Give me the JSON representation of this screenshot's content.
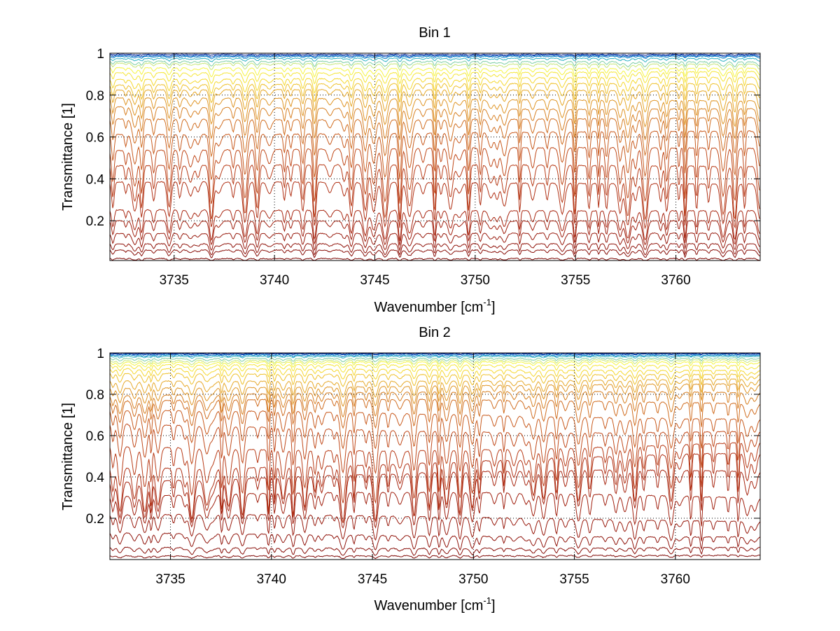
{
  "chart_data": [
    {
      "type": "line",
      "title": "Bin 1",
      "xlabel_base": "Wavenumber [cm",
      "xlabel_sup": "-1",
      "xlabel_close": "]",
      "ylabel": "Transmittance [1]",
      "xlim": [
        3731.8,
        3764.2
      ],
      "ylim": [
        0.01,
        1.0
      ],
      "xticks": [
        3735,
        3740,
        3745,
        3750,
        3755,
        3760
      ],
      "xtick_labels": [
        "3735",
        "3740",
        "3745",
        "3750",
        "3755",
        "3760"
      ],
      "yticks": [
        0.2,
        0.4,
        0.6,
        0.8,
        1
      ],
      "ytick_labels": [
        "0.2",
        "0.4",
        "0.6",
        "0.8",
        "1"
      ],
      "grid": true,
      "series_count": 24,
      "series_baselines": [
        0.995,
        0.99,
        0.985,
        0.975,
        0.96,
        0.95,
        0.93,
        0.91,
        0.88,
        0.85,
        0.82,
        0.78,
        0.74,
        0.69,
        0.62,
        0.54,
        0.46,
        0.38,
        0.25,
        0.2,
        0.14,
        0.09,
        0.06,
        0.02
      ],
      "series_colors": [
        "#00208f",
        "#0050c0",
        "#0a85c8",
        "#2fb2c4",
        "#7fcfa6",
        "#c7e67a",
        "#f5f542",
        "#f5e63a",
        "#f5d82f",
        "#eec12c",
        "#e6a829",
        "#df9526",
        "#d78023",
        "#d06d20",
        "#c85a1d",
        "#c0491a",
        "#b83b17",
        "#b03014",
        "#a82712",
        "#a0200f",
        "#981a0d",
        "#90140b",
        "#880f09",
        "#800a07"
      ]
    },
    {
      "type": "line",
      "title": "Bin 2",
      "xlabel_base": "Wavenumber [cm",
      "xlabel_sup": "-1",
      "xlabel_close": "]",
      "ylabel": "Transmittance [1]",
      "xlim": [
        3732.0,
        3764.2
      ],
      "ylim": [
        0.0,
        1.0
      ],
      "xticks": [
        3735,
        3740,
        3745,
        3750,
        3755,
        3760
      ],
      "xtick_labels": [
        "3735",
        "3740",
        "3745",
        "3750",
        "3755",
        "3760"
      ],
      "yticks": [
        0.2,
        0.4,
        0.6,
        0.8,
        1
      ],
      "ytick_labels": [
        "0.2",
        "0.4",
        "0.6",
        "0.8",
        "1"
      ],
      "grid": true,
      "series_count": 24,
      "series_baselines": [
        0.998,
        0.995,
        0.99,
        0.985,
        0.975,
        0.965,
        0.955,
        0.94,
        0.92,
        0.9,
        0.87,
        0.84,
        0.8,
        0.76,
        0.7,
        0.64,
        0.56,
        0.48,
        0.4,
        0.3,
        0.2,
        0.12,
        0.06,
        0.02
      ],
      "series_colors": [
        "#00208f",
        "#0050c0",
        "#0a85c8",
        "#2fb2c4",
        "#7fcfa6",
        "#c7e67a",
        "#f5f542",
        "#f5e63a",
        "#f5d82f",
        "#eec12c",
        "#e6a829",
        "#df9526",
        "#d78023",
        "#d06d20",
        "#c85a1d",
        "#c0491a",
        "#b83b17",
        "#b03014",
        "#a82712",
        "#a0200f",
        "#981a0d",
        "#90140b",
        "#880f09",
        "#800a07"
      ]
    }
  ]
}
